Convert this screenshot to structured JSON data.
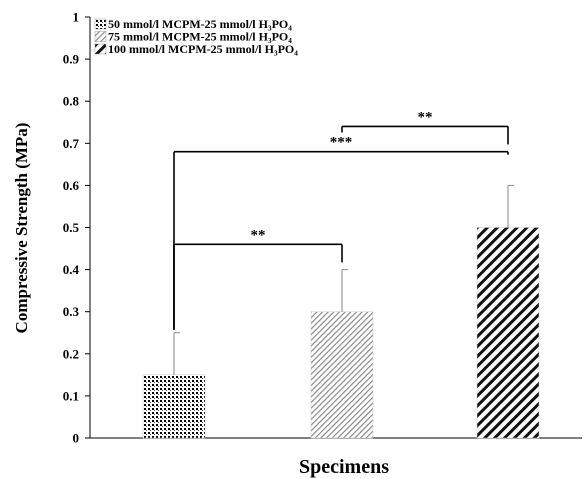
{
  "chart_data": {
    "type": "bar",
    "xlabel": "Specimens",
    "ylabel": "Compressive Strength (MPa)",
    "ylim": [
      0,
      1
    ],
    "yticks": [
      "0",
      "0.1",
      "0.2",
      "0.3",
      "0.4",
      "0.5",
      "0.6",
      "0.7",
      "0.8",
      "0.9",
      "1"
    ],
    "legend_position": "top-left",
    "grid": false,
    "series": [
      {
        "name": "50 mmol/l MCPM-25 mmol/l H₃PO₄",
        "value": 0.15,
        "error": 0.1,
        "pattern": "dots"
      },
      {
        "name": "75 mmol/l MCPM-25 mmol/l H₃PO₄",
        "value": 0.3,
        "error": 0.1,
        "pattern": "light-diagonal"
      },
      {
        "name": "100 mmol/l MCPM-25 mmol/l H₃PO₄",
        "value": 0.5,
        "error": 0.1,
        "pattern": "dark-diagonal"
      }
    ],
    "significance": [
      {
        "from": 0,
        "to": 1,
        "label": "**",
        "level": 0.46
      },
      {
        "from": 0,
        "to": 2,
        "label": "***",
        "level": 0.68
      },
      {
        "from": 1,
        "to": 2,
        "label": "**",
        "level": 0.74
      }
    ]
  }
}
